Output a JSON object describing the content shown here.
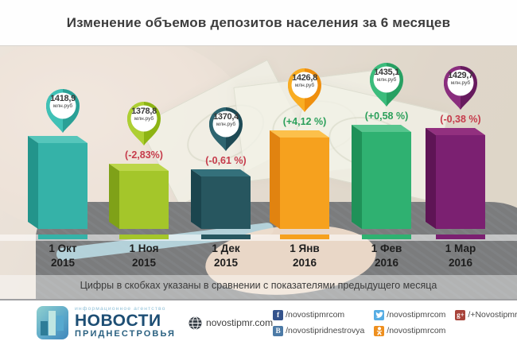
{
  "title": "Изменение объемов депозитов населения за 6 месяцев",
  "note": "Цифры в скобках указаны в сравнении с показателями предыдущего месяца",
  "chart_data": {
    "type": "bar",
    "title": "Изменение объемов депозитов населения за 6 месяцев",
    "unit": "млн.руб",
    "categories": [
      "1 Окт 2015",
      "1 Ноя 2015",
      "1 Дек 2015",
      "1 Янв 2016",
      "1 Фев 2016",
      "1 Мар 2016"
    ],
    "category_lines": [
      [
        "1 Окт",
        "2015"
      ],
      [
        "1 Ноя",
        "2015"
      ],
      [
        "1 Дек",
        "2015"
      ],
      [
        "1 Янв",
        "2016"
      ],
      [
        "1 Фев",
        "2016"
      ],
      [
        "1 Мар",
        "2016"
      ]
    ],
    "values": [
      1418.9,
      1378.8,
      1370.4,
      1426.8,
      1435.1,
      1429.7
    ],
    "value_labels": [
      "1418,9",
      "1378,8",
      "1370,4",
      "1426,8",
      "1435,1",
      "1429,7"
    ],
    "percent_change": [
      null,
      -2.83,
      -0.61,
      4.12,
      0.58,
      -0.38
    ],
    "percent_labels": [
      null,
      "(-2,83%)",
      "(-0,61 %)",
      "(+4,12 %)",
      "(+0,58 %)",
      "(-0,38 %)"
    ],
    "positive_color": "#2b9f5a",
    "negative_color": "#c63b4b",
    "bar_colors": [
      {
        "front": "#35b2a8",
        "side": "#23948b",
        "top": "#56c6bb",
        "pinL": "#40c1b6",
        "pinR": "#2aa096"
      },
      {
        "front": "#a4c62a",
        "side": "#7fa118",
        "top": "#bcd64a",
        "pinL": "#aecf33",
        "pinR": "#8db414"
      },
      {
        "front": "#27565f",
        "side": "#1b454e",
        "top": "#34707b",
        "pinL": "#2e6570",
        "pinR": "#1e4a55"
      },
      {
        "front": "#f6a11e",
        "side": "#e18310",
        "top": "#fcc04b",
        "pinL": "#f9ad22",
        "pinR": "#ef8f0e"
      },
      {
        "front": "#2fb171",
        "side": "#1f9158",
        "top": "#57c58e",
        "pinL": "#3bbc7c",
        "pinR": "#27a062"
      },
      {
        "front": "#7b2071",
        "side": "#5e1455",
        "top": "#92307f",
        "pinL": "#8a2d7e",
        "pinR": "#671a5e"
      }
    ],
    "legend": false,
    "grid": false
  },
  "footer": {
    "agency_line": "информационное агентство",
    "brand_line1": "НОВОСТИ",
    "brand_line2": "ПРИДНЕСТРОВЬЯ",
    "site": "novostipmr.com",
    "socials": [
      {
        "network": "facebook",
        "label": "/novostipmrcom",
        "color": "#34538c"
      },
      {
        "network": "vk",
        "label": "/novostipridnestrovya",
        "color": "#4c7aa6"
      },
      {
        "network": "twitter",
        "label": "/novostipmrcom",
        "color": "#56ade4"
      },
      {
        "network": "odnoklassniki",
        "label": "/novostipmrcom",
        "color": "#ee8f1e"
      },
      {
        "network": "googleplus",
        "label": "/+Novostipmr",
        "color": "#a8433a"
      }
    ]
  }
}
